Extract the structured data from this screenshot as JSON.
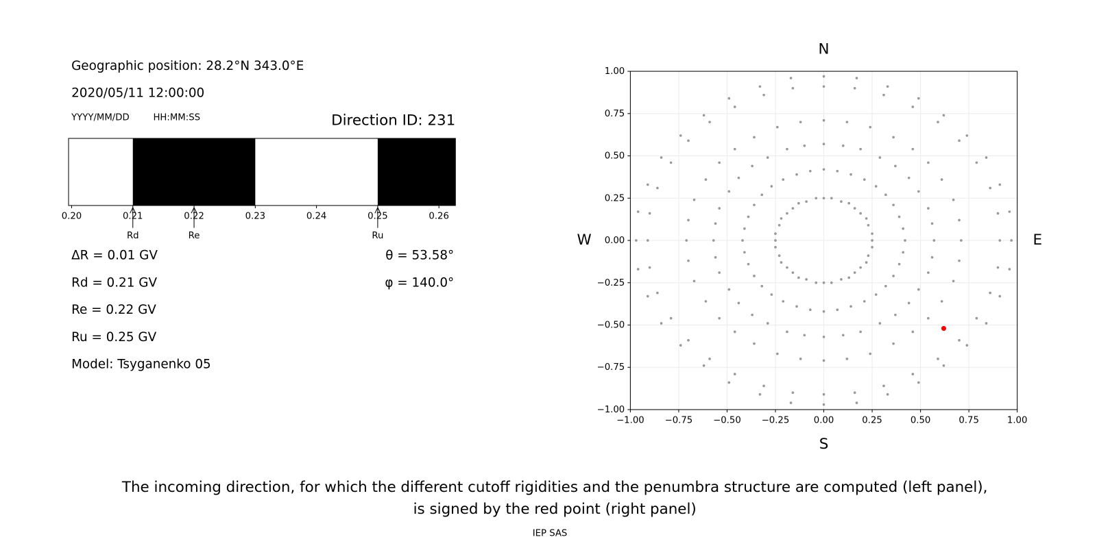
{
  "info": {
    "position": "Geographic position: 28.2°N 343.0°E",
    "datetime": "2020/05/11 12:00:00",
    "date_format": "YYYY/MM/DD",
    "time_format": "HH:MM:SS",
    "direction": "Direction ID: 231",
    "lines": [
      "ΔR = 0.01 GV",
      "Rd = 0.21 GV",
      "Re = 0.22 GV",
      "Ru = 0.25 GV",
      "Model: Tsyganenko 05"
    ],
    "angles": [
      "θ = 53.58°",
      "φ = 140.0°"
    ]
  },
  "caption": [
    "The incoming direction, for which the different cutoff rigidities and the penumbra structure are computed (left panel),",
    "is signed by the red point (right panel)"
  ],
  "credit": "IEP SAS",
  "chart_data": [
    {
      "type": "penumbra",
      "xlim": [
        0.1995,
        0.2627
      ],
      "xticks": [
        {
          "value": 0.2,
          "label": "0.20"
        },
        0.21,
        0.22,
        0.23,
        0.24,
        0.25,
        0.26
      ],
      "color": "#000000",
      "spans": [
        {
          "start": 0.21,
          "end": 0.23
        },
        {
          "start": 0.25,
          "end": 0.2627
        }
      ],
      "annotations": [
        {
          "label": "Rd",
          "x": 0.21
        },
        {
          "label": "Re",
          "x": 0.22
        },
        {
          "label": "Ru",
          "x": 0.25
        }
      ]
    },
    {
      "type": "scatter",
      "xlim": [
        -1,
        1
      ],
      "ylim": [
        -1,
        1
      ],
      "grid": true,
      "xticks": [
        {
          "value": -1,
          "label": "−1.00"
        },
        {
          "value": -0.75,
          "label": "−0.75"
        },
        {
          "value": -0.5,
          "label": "−0.50"
        },
        {
          "value": -0.25,
          "label": "−0.25"
        },
        {
          "value": 0,
          "label": "0.00"
        },
        {
          "value": 0.25,
          "label": "0.25"
        },
        {
          "value": 0.5,
          "label": "0.50"
        },
        {
          "value": 0.75,
          "label": "0.75"
        },
        {
          "value": 1,
          "label": "1.00"
        }
      ],
      "yticks": [
        {
          "value": -1,
          "label": "−1.00"
        },
        {
          "value": -0.75,
          "label": "−0.75"
        },
        {
          "value": -0.5,
          "label": "−0.50"
        },
        {
          "value": -0.25,
          "label": "−0.25"
        },
        {
          "value": 0,
          "label": "0.00"
        },
        {
          "value": 0.25,
          "label": "0.25"
        },
        {
          "value": 0.5,
          "label": "0.50"
        },
        {
          "value": 0.75,
          "label": "0.75"
        },
        {
          "value": 1,
          "label": "1.00"
        }
      ],
      "compass": {
        "top": "N",
        "bottom": "S",
        "left": "W",
        "right": "E"
      },
      "series": [
        {
          "color": "#999999",
          "x": [
            0,
            0,
            0,
            0,
            0,
            0,
            0.04,
            0.07,
            0.1,
            0.12,
            0.16,
            0.17,
            0.09,
            0.14,
            0.19,
            0.24,
            0.31,
            0.33,
            0.13,
            0.21,
            0.29,
            0.36,
            0.46,
            0.49,
            0.16,
            0.27,
            0.37,
            0.46,
            0.59,
            0.62,
            0.19,
            0.32,
            0.44,
            0.54,
            0.7,
            0.74,
            0.22,
            0.36,
            0.49,
            0.61,
            0.79,
            0.84,
            0.23,
            0.39,
            0.54,
            0.67,
            0.86,
            0.91,
            0.25,
            0.41,
            0.56,
            0.7,
            0.9,
            0.96,
            0.25,
            0.42,
            0.57,
            0.71,
            0.91,
            0.97,
            0.25,
            0.41,
            0.56,
            0.7,
            0.9,
            0.96,
            0.23,
            0.39,
            0.54,
            0.67,
            0.86,
            0.91,
            0.22,
            0.36,
            0.49,
            0.61,
            0.79,
            0.84,
            0.19,
            0.32,
            0.44,
            0.54,
            0.7,
            0.74,
            0.16,
            0.27,
            0.37,
            0.46,
            0.59,
            0.62,
            0.13,
            0.21,
            0.29,
            0.36,
            0.46,
            0.49,
            0.09,
            0.14,
            0.19,
            0.24,
            0.31,
            0.33,
            0.04,
            0.07,
            0.1,
            0.12,
            0.16,
            0.17,
            0,
            0,
            0,
            0,
            0,
            0,
            -0.04,
            -0.07,
            -0.1,
            -0.12,
            -0.16,
            -0.17,
            -0.09,
            -0.14,
            -0.19,
            -0.24,
            -0.31,
            -0.33,
            -0.13,
            -0.21,
            -0.29,
            -0.36,
            -0.46,
            -0.49,
            -0.16,
            -0.27,
            -0.37,
            -0.46,
            -0.59,
            -0.62,
            -0.19,
            -0.32,
            -0.44,
            -0.54,
            -0.7,
            -0.74,
            -0.22,
            -0.36,
            -0.49,
            -0.61,
            -0.79,
            -0.84,
            -0.23,
            -0.39,
            -0.54,
            -0.67,
            -0.86,
            -0.91,
            -0.25,
            -0.41,
            -0.56,
            -0.7,
            -0.9,
            -0.96,
            -0.25,
            -0.42,
            -0.57,
            -0.71,
            -0.91,
            -0.97,
            -0.25,
            -0.41,
            -0.56,
            -0.7,
            -0.9,
            -0.96,
            -0.23,
            -0.39,
            -0.54,
            -0.67,
            -0.86,
            -0.91,
            -0.22,
            -0.36,
            -0.49,
            -0.61,
            -0.79,
            -0.84,
            -0.19,
            -0.32,
            -0.44,
            -0.54,
            -0.7,
            -0.74,
            -0.16,
            -0.27,
            -0.37,
            -0.46,
            -0.59,
            -0.62,
            -0.13,
            -0.21,
            -0.29,
            -0.36,
            -0.46,
            -0.49,
            -0.09,
            -0.14,
            -0.19,
            -0.24,
            -0.31,
            -0.33,
            -0.04,
            -0.07,
            -0.1,
            -0.12,
            -0.16,
            -0.17
          ],
          "values": [
            0.25,
            0.42,
            0.57,
            0.71,
            0.91,
            0.97,
            0.25,
            0.41,
            0.56,
            0.7,
            0.9,
            0.96,
            0.23,
            0.39,
            0.54,
            0.67,
            0.86,
            0.91,
            0.22,
            0.36,
            0.49,
            0.61,
            0.79,
            0.84,
            0.19,
            0.32,
            0.44,
            0.54,
            0.7,
            0.74,
            0.16,
            0.27,
            0.37,
            0.46,
            0.59,
            0.62,
            0.13,
            0.21,
            0.29,
            0.36,
            0.46,
            0.49,
            0.09,
            0.14,
            0.19,
            0.24,
            0.31,
            0.33,
            0.04,
            0.07,
            0.1,
            0.12,
            0.16,
            0.17,
            0,
            0,
            0,
            0,
            0,
            0,
            -0.04,
            -0.07,
            -0.1,
            -0.12,
            -0.16,
            -0.17,
            -0.09,
            -0.14,
            -0.19,
            -0.24,
            -0.31,
            -0.33,
            -0.13,
            -0.21,
            -0.29,
            -0.36,
            -0.46,
            -0.49,
            -0.16,
            -0.27,
            -0.37,
            -0.46,
            -0.59,
            -0.62,
            -0.19,
            -0.32,
            -0.44,
            -0.54,
            -0.7,
            -0.74,
            -0.22,
            -0.36,
            -0.49,
            -0.61,
            -0.79,
            -0.84,
            -0.23,
            -0.39,
            -0.54,
            -0.67,
            -0.86,
            -0.91,
            -0.25,
            -0.41,
            -0.56,
            -0.7,
            -0.9,
            -0.96,
            -0.25,
            -0.42,
            -0.57,
            -0.71,
            -0.91,
            -0.97,
            -0.25,
            -0.41,
            -0.56,
            -0.7,
            -0.9,
            -0.96,
            -0.23,
            -0.39,
            -0.54,
            -0.67,
            -0.86,
            -0.91,
            -0.22,
            -0.36,
            -0.49,
            -0.61,
            -0.79,
            -0.84,
            -0.19,
            -0.32,
            -0.44,
            -0.54,
            -0.7,
            -0.74,
            -0.16,
            -0.27,
            -0.37,
            -0.46,
            -0.59,
            -0.62,
            -0.13,
            -0.21,
            -0.29,
            -0.36,
            -0.46,
            -0.49,
            -0.09,
            -0.14,
            -0.19,
            -0.24,
            -0.31,
            -0.33,
            -0.04,
            -0.07,
            -0.1,
            -0.12,
            -0.16,
            -0.17,
            0,
            0,
            0,
            0,
            0,
            0,
            0.04,
            0.07,
            0.1,
            0.12,
            0.16,
            0.17,
            0.09,
            0.14,
            0.19,
            0.24,
            0.31,
            0.33,
            0.13,
            0.21,
            0.29,
            0.36,
            0.46,
            0.49,
            0.16,
            0.27,
            0.37,
            0.46,
            0.59,
            0.62,
            0.19,
            0.32,
            0.44,
            0.54,
            0.7,
            0.74,
            0.22,
            0.36,
            0.49,
            0.61,
            0.79,
            0.84,
            0.23,
            0.39,
            0.54,
            0.67,
            0.86,
            0.91,
            0.25,
            0.41,
            0.56,
            0.7,
            0.9,
            0.96
          ]
        },
        {
          "color": "#ff0000",
          "x": [
            0.62
          ],
          "values": [
            -0.52
          ]
        }
      ]
    }
  ]
}
